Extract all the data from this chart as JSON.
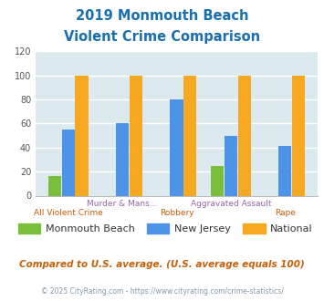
{
  "title_line1": "2019 Monmouth Beach",
  "title_line2": "Violent Crime Comparison",
  "title_color": "#1a6faf",
  "categories": [
    "All Violent Crime",
    "Murder & Mans...",
    "Robbery",
    "Aggravated Assault",
    "Rape"
  ],
  "monmouth_beach": [
    16,
    0,
    0,
    25,
    0
  ],
  "new_jersey": [
    55,
    60,
    80,
    50,
    41
  ],
  "national": [
    100,
    100,
    100,
    100,
    100
  ],
  "bar_colors": {
    "monmouth_beach": "#7abf3c",
    "new_jersey": "#4d94e8",
    "national": "#f5a820"
  },
  "ylim": [
    0,
    120
  ],
  "yticks": [
    0,
    20,
    40,
    60,
    80,
    100,
    120
  ],
  "background_color": "#dceaf0",
  "grid_color": "#ffffff",
  "legend_labels": [
    "Monmouth Beach",
    "New Jersey",
    "National"
  ],
  "footnote1": "Compared to U.S. average. (U.S. average equals 100)",
  "footnote2": "© 2025 CityRating.com - https://www.cityrating.com/crime-statistics/",
  "footnote1_color": "#c8600a",
  "footnote2_color": "#8899aa",
  "xlabel_top_labels": [
    "Murder & Mans...",
    "Aggravated Assault"
  ],
  "xlabel_top_positions": [
    1,
    3
  ],
  "xlabel_bottom_labels": [
    "All Violent Crime",
    "Robbery",
    "Rape"
  ],
  "xlabel_bottom_positions": [
    0,
    2,
    4
  ],
  "top_label_color": "#9966aa",
  "bot_label_color": "#c8600a"
}
